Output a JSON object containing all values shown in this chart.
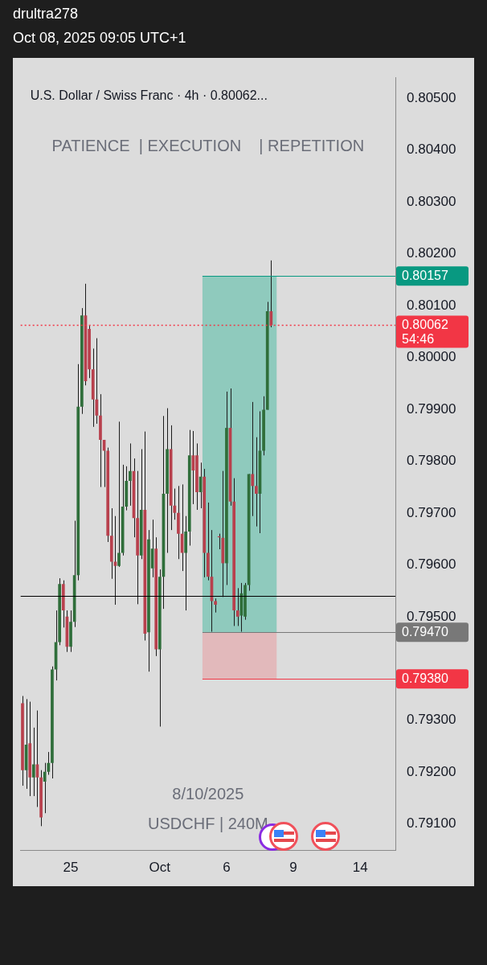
{
  "chart_data": {
    "type": "candlestick",
    "title": "U.S. Dollar / Swiss Franc · 4h · 0.80062...",
    "subtitle": "PATIENCE  | EXECUTION    | REPETITION",
    "annotations": [
      "drultra278",
      "Oct 08, 2025 09:05 UTC+1",
      "8/10/2025",
      "USDCHF | 240M",
      "54:46"
    ],
    "categories": [
      null,
      null,
      null,
      null,
      null,
      null,
      null,
      null,
      null,
      null,
      null,
      null,
      null,
      "25",
      null,
      null,
      null,
      null,
      null,
      null,
      null,
      null,
      null,
      null,
      null,
      null,
      null,
      null,
      null,
      null,
      null,
      null,
      null,
      null,
      null,
      null,
      null,
      "Oct",
      null,
      null,
      null,
      null,
      null,
      null,
      null,
      null,
      null,
      null,
      null,
      null,
      null,
      null,
      null,
      null,
      null,
      "6",
      null,
      null,
      null,
      null,
      null,
      null,
      null,
      null,
      null,
      null,
      null,
      null,
      null,
      null,
      null,
      null,
      null,
      "9",
      null,
      null,
      null,
      null,
      null,
      null,
      null,
      null,
      null,
      null,
      null,
      null,
      null,
      null,
      null,
      null,
      null,
      "14",
      null,
      null,
      null,
      null,
      null,
      null,
      null,
      null,
      null
    ],
    "ohlc": [
      [
        0.79333,
        0.79347,
        0.79174,
        0.79204
      ],
      [
        0.79204,
        0.79341,
        0.79168,
        0.79253
      ],
      [
        0.79256,
        0.79336,
        0.79154,
        0.7919
      ],
      [
        0.7919,
        0.79286,
        0.79154,
        0.79215
      ],
      [
        0.79215,
        0.79319,
        0.79133,
        0.7919
      ],
      [
        0.7919,
        0.79204,
        0.79096,
        0.79113
      ],
      [
        0.79182,
        0.79218,
        0.79121,
        0.79201
      ],
      [
        0.79201,
        0.79239,
        0.79195,
        0.79218
      ],
      [
        0.79218,
        0.79404,
        0.79188,
        0.79398
      ],
      [
        0.79398,
        0.79512,
        0.79377,
        0.79451
      ],
      [
        0.79451,
        0.79574,
        0.79445,
        0.79563
      ],
      [
        0.79563,
        0.7957,
        0.79479,
        0.79512
      ],
      [
        0.795,
        0.79512,
        0.79432,
        0.79442
      ],
      [
        0.79442,
        0.79512,
        0.79432,
        0.7949
      ],
      [
        0.7949,
        0.79685,
        0.7948,
        0.7958
      ],
      [
        0.7958,
        0.79987,
        0.7957,
        0.79905
      ],
      [
        0.79905,
        0.80095,
        0.79891,
        0.80081
      ],
      [
        0.80081,
        0.80142,
        0.79946,
        0.79954
      ],
      [
        0.80055,
        0.80061,
        0.7996,
        0.79977
      ],
      [
        0.79977,
        0.80017,
        0.79866,
        0.79919
      ],
      [
        0.79919,
        0.80037,
        0.79872,
        0.79888
      ],
      [
        0.79888,
        0.79929,
        0.7975,
        0.79841
      ],
      [
        0.79841,
        0.79841,
        0.7975,
        0.7982
      ],
      [
        0.7982,
        0.79826,
        0.79644,
        0.79656
      ],
      [
        0.79656,
        0.79709,
        0.79573,
        0.79606
      ],
      [
        0.79606,
        0.79694,
        0.79523,
        0.79598
      ],
      [
        0.79598,
        0.79876,
        0.79596,
        0.79623
      ],
      [
        0.79623,
        0.79793,
        0.79618,
        0.79712
      ],
      [
        0.79712,
        0.7979,
        0.79705,
        0.79762
      ],
      [
        0.79762,
        0.79834,
        0.79714,
        0.79781
      ],
      [
        0.79781,
        0.79805,
        0.79653,
        0.7969
      ],
      [
        0.7969,
        0.79781,
        0.79524,
        0.79618
      ],
      [
        0.79618,
        0.79823,
        0.79611,
        0.79706
      ],
      [
        0.79706,
        0.79857,
        0.79454,
        0.79467
      ],
      [
        0.7947,
        0.79667,
        0.79394,
        0.79649
      ],
      [
        0.79593,
        0.79687,
        0.79576,
        0.79631
      ],
      [
        0.79631,
        0.79653,
        0.79424,
        0.79437
      ],
      [
        0.79437,
        0.79591,
        0.79288,
        0.79577
      ],
      [
        0.79577,
        0.79887,
        0.79515,
        0.79737
      ],
      [
        0.79737,
        0.79902,
        0.79623,
        0.79823
      ],
      [
        0.79823,
        0.79869,
        0.79667,
        0.79714
      ],
      [
        0.79714,
        0.79747,
        0.79687,
        0.797
      ],
      [
        0.797,
        0.79752,
        0.79611,
        0.7966
      ],
      [
        0.7966,
        0.79755,
        0.79588,
        0.79623
      ],
      [
        0.79623,
        0.79694,
        0.79512,
        0.79664
      ],
      [
        0.79664,
        0.7986,
        0.79637,
        0.79811
      ],
      [
        0.79811,
        0.79858,
        0.79717,
        0.79782
      ],
      [
        0.79811,
        0.79834,
        0.79706,
        0.7974
      ],
      [
        0.7974,
        0.79797,
        0.79709,
        0.7977
      ],
      [
        0.7977,
        0.79785,
        0.79576,
        0.79623
      ],
      [
        0.79623,
        0.7972,
        0.7957,
        0.79577
      ],
      [
        0.79577,
        0.79667,
        0.79471,
        0.7953
      ],
      [
        0.7953,
        0.79535,
        0.79508,
        0.79523
      ],
      [
        0.79655,
        0.7966,
        0.7963,
        0.79653
      ],
      [
        0.79652,
        0.79781,
        0.79538,
        0.79603
      ],
      [
        0.79603,
        0.79934,
        0.79561,
        0.79864
      ],
      [
        0.79864,
        0.7994,
        0.79714,
        0.79722
      ],
      [
        0.79722,
        0.79767,
        0.79482,
        0.79512
      ],
      [
        0.79512,
        0.79555,
        0.79482,
        0.795
      ],
      [
        0.79502,
        0.79565,
        0.79471,
        0.79545
      ],
      [
        0.795,
        0.79565,
        0.79494,
        0.79561
      ],
      [
        0.79561,
        0.79775,
        0.7955,
        0.79775
      ],
      [
        0.79775,
        0.79914,
        0.79694,
        0.79752
      ],
      [
        0.79752,
        0.79846,
        0.79674,
        0.79737
      ],
      [
        0.79737,
        0.79896,
        0.79661,
        0.7982
      ],
      [
        0.7982,
        0.79925,
        0.79811,
        0.79899
      ],
      [
        0.79899,
        0.80107,
        0.79899,
        0.80089
      ],
      [
        0.80089,
        0.80187,
        0.80058,
        0.80062
      ],
      null,
      null,
      null,
      null,
      null,
      null,
      null,
      null,
      null,
      null,
      null,
      null,
      null,
      null,
      null,
      null,
      null,
      null,
      null,
      null,
      null,
      null,
      null,
      null,
      null,
      null,
      null,
      null,
      null,
      null,
      null,
      null,
      null
    ],
    "ylim": [
      0.7905,
      0.8054
    ],
    "yticks": [
      {
        "value": 0.791,
        "label": "0.79100"
      },
      {
        "value": 0.792,
        "label": "0.79200"
      },
      {
        "value": 0.793,
        "label": "0.79300"
      },
      {
        "value": 0.795,
        "label": "0.79500"
      },
      {
        "value": 0.796,
        "label": "0.79600"
      },
      {
        "value": 0.797,
        "label": "0.79700"
      },
      {
        "value": 0.798,
        "label": "0.79800"
      },
      {
        "value": 0.799,
        "label": "0.79900"
      },
      {
        "value": 0.8,
        "label": "0.80000"
      },
      {
        "value": 0.801,
        "label": "0.80100"
      },
      {
        "value": 0.802,
        "label": "0.80200"
      },
      {
        "value": 0.803,
        "label": "0.80300"
      },
      {
        "value": 0.804,
        "label": "0.80400"
      },
      {
        "value": 0.805,
        "label": "0.80500"
      }
    ],
    "bands": [
      {
        "axis": "y",
        "from": 0.7947,
        "to": 0.80157,
        "color": "#8fcabd"
      },
      {
        "axis": "y",
        "from": 0.7938,
        "to": 0.7947,
        "color": "#e2b9bb"
      }
    ],
    "ref_lines": [
      {
        "axis": "y",
        "value": 0.80157,
        "label": "0.80157",
        "color": "#089981"
      },
      {
        "axis": "y",
        "value": 0.80062,
        "label": "0.80062",
        "color": "#f23645",
        "line_style": "dotted"
      },
      {
        "axis": "y",
        "value": 0.7954,
        "label": null,
        "color": "#000000",
        "line_style": "solid"
      },
      {
        "axis": "y",
        "value": 0.7947,
        "label": "0.79470",
        "color": "#787878"
      },
      {
        "axis": "y",
        "value": 0.7938,
        "label": "0.79380",
        "color": "#f23645"
      }
    ],
    "grid": false,
    "legend": false
  }
}
